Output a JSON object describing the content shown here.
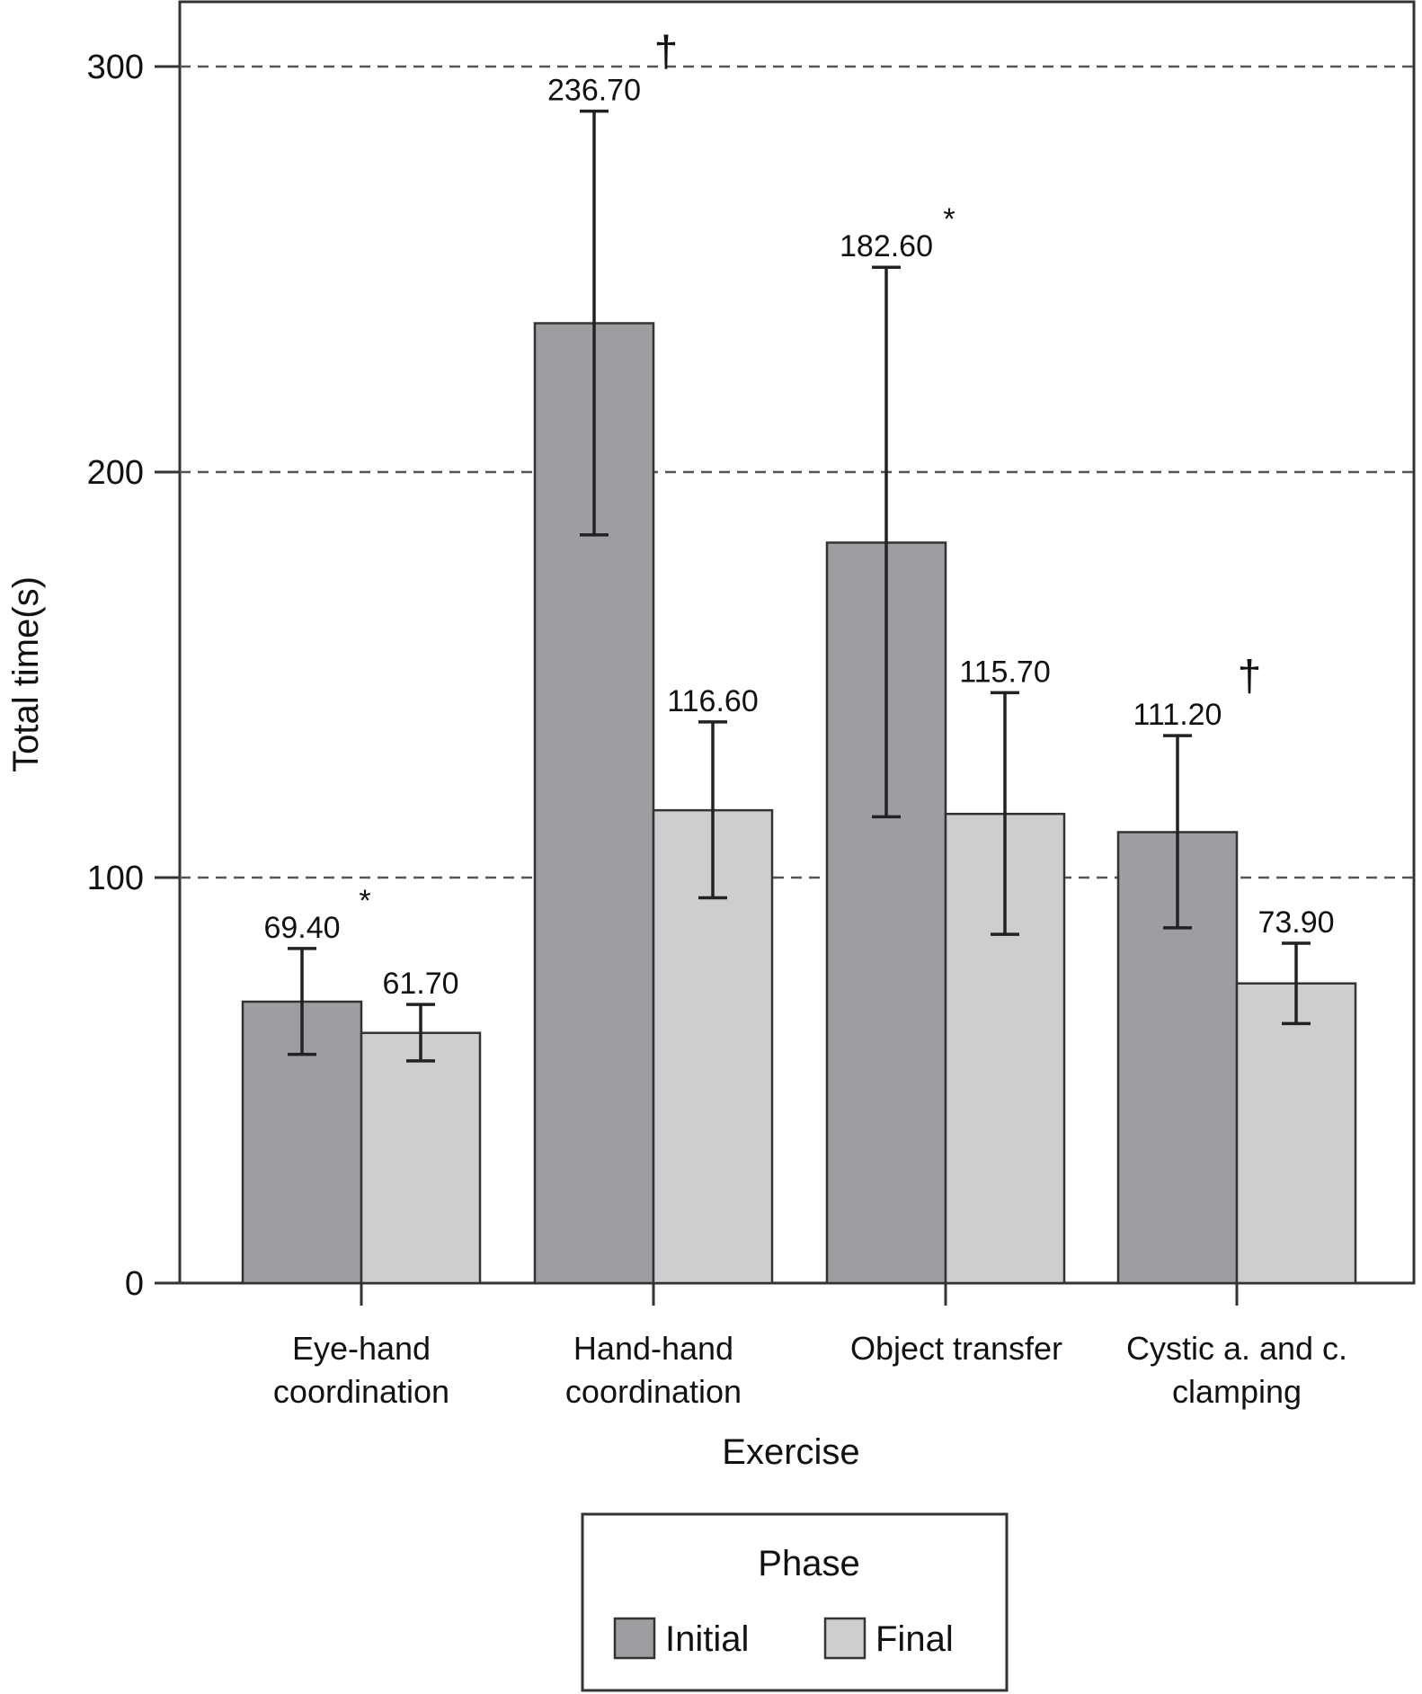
{
  "chart_data": {
    "type": "bar",
    "title": "",
    "xlabel": "Exercise",
    "ylabel": "Total time(s)",
    "ylim": [
      0,
      315
    ],
    "yticks": [
      0,
      100,
      200,
      300
    ],
    "grid": "dashed horizontal at 100, 200, 300",
    "categories": [
      [
        "Eye-hand",
        "coordination"
      ],
      [
        "Hand-hand",
        "coordination"
      ],
      [
        "Object transfer"
      ],
      [
        "Cystic a. and c.",
        "clamping"
      ]
    ],
    "series": [
      {
        "name": "Initial",
        "color": "#9d9ea2",
        "values": [
          69.4,
          236.7,
          182.6,
          111.2
        ],
        "labels": [
          "69.40",
          "236.70",
          "182.60",
          "111.20"
        ],
        "error_low": [
          56.4,
          184.5,
          115,
          87.6
        ],
        "error_high": [
          82.5,
          289,
          250.5,
          135
        ],
        "markers": [
          "*",
          "†",
          "*",
          "†"
        ]
      },
      {
        "name": "Final",
        "color": "#cdced0",
        "values": [
          61.7,
          116.6,
          115.7,
          73.9
        ],
        "labels": [
          "61.70",
          "116.60",
          "115.70",
          "73.90"
        ],
        "error_low": [
          54.8,
          95,
          86,
          64
        ],
        "error_high": [
          68.7,
          138.4,
          145.6,
          83.8
        ],
        "markers": [
          "",
          "",
          "",
          ""
        ]
      }
    ],
    "legend": {
      "title": "Phase",
      "placement": "bottom"
    }
  }
}
